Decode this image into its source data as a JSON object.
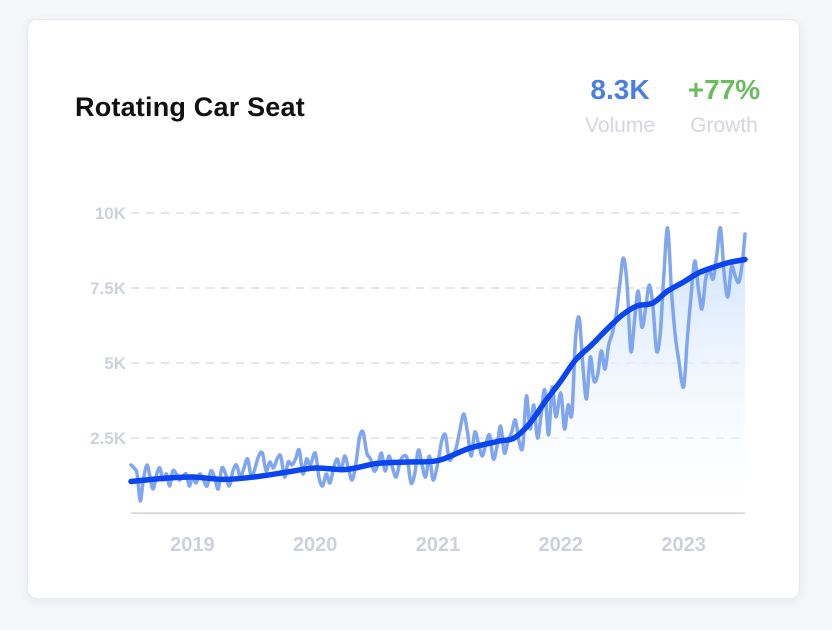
{
  "card": {
    "title": "Rotating Car Seat"
  },
  "metrics": {
    "volume": {
      "value": "8.3K",
      "label": "Volume",
      "color": "#4a7fe0"
    },
    "growth": {
      "value": "+77%",
      "label": "Growth",
      "color": "#68bd5c"
    }
  },
  "colors": {
    "raw_line": "#7fa6ef",
    "trend_line": "#0a45f0",
    "area_top": "#d6e6fd",
    "grid": "#dcdfe5",
    "tick_text": "#cdd1da"
  },
  "chart_data": {
    "type": "line",
    "title": "Rotating Car Seat",
    "xlabel": "",
    "ylabel": "",
    "xlim": [
      2018.5,
      2023.5
    ],
    "ylim": [
      0,
      10000
    ],
    "y_ticks": [
      2500,
      5000,
      7500,
      10000
    ],
    "y_tick_labels": [
      "2.5K",
      "5K",
      "7.5K",
      "10K"
    ],
    "x_ticks": [
      2019,
      2020,
      2021,
      2022,
      2023
    ],
    "x_tick_labels": [
      "2019",
      "2020",
      "2021",
      "2022",
      "2023"
    ],
    "grid": true,
    "series": [
      {
        "name": "",
        "style": "raw",
        "x": [
          2018.5,
          2018.525,
          2018.55,
          2018.575,
          2018.6,
          2018.63,
          2018.655,
          2018.68,
          2018.71,
          2018.735,
          2018.76,
          2018.79,
          2018.815,
          2018.84,
          2018.87,
          2018.895,
          2018.92,
          2018.95,
          2018.975,
          2019.0,
          2019.03,
          2019.06,
          2019.09,
          2019.12,
          2019.15,
          2019.18,
          2019.21,
          2019.24,
          2019.27,
          2019.3,
          2019.33,
          2019.36,
          2019.39,
          2019.42,
          2019.45,
          2019.48,
          2019.51,
          2019.54,
          2019.57,
          2019.6,
          2019.63,
          2019.66,
          2019.69,
          2019.72,
          2019.75,
          2019.78,
          2019.81,
          2019.84,
          2019.87,
          2019.9,
          2019.93,
          2019.96,
          2020.0,
          2020.03,
          2020.06,
          2020.09,
          2020.12,
          2020.15,
          2020.18,
          2020.21,
          2020.24,
          2020.27,
          2020.3,
          2020.33,
          2020.36,
          2020.39,
          2020.42,
          2020.45,
          2020.48,
          2020.51,
          2020.54,
          2020.57,
          2020.6,
          2020.63,
          2020.66,
          2020.69,
          2020.72,
          2020.75,
          2020.78,
          2020.81,
          2020.84,
          2020.87,
          2020.9,
          2020.93,
          2020.96,
          2021.0,
          2021.03,
          2021.06,
          2021.09,
          2021.12,
          2021.15,
          2021.18,
          2021.21,
          2021.24,
          2021.27,
          2021.3,
          2021.33,
          2021.36,
          2021.39,
          2021.42,
          2021.45,
          2021.48,
          2021.51,
          2021.54,
          2021.57,
          2021.6,
          2021.63,
          2021.66,
          2021.69,
          2021.72,
          2021.75,
          2021.78,
          2021.81,
          2021.84,
          2021.87,
          2021.9,
          2021.93,
          2021.96,
          2022.0,
          2022.03,
          2022.06,
          2022.09,
          2022.12,
          2022.15,
          2022.18,
          2022.21,
          2022.24,
          2022.27,
          2022.3,
          2022.33,
          2022.36,
          2022.39,
          2022.42,
          2022.45,
          2022.48,
          2022.51,
          2022.54,
          2022.57,
          2022.6,
          2022.63,
          2022.66,
          2022.69,
          2022.72,
          2022.75,
          2022.78,
          2022.81,
          2022.84,
          2022.87,
          2022.9,
          2022.93,
          2022.96,
          2023.0,
          2023.03,
          2023.06,
          2023.09,
          2023.12,
          2023.15,
          2023.18,
          2023.21,
          2023.24,
          2023.27,
          2023.3,
          2023.33,
          2023.36,
          2023.39,
          2023.42,
          2023.45,
          2023.48,
          2023.5
        ],
        "values": [
          1600,
          1500,
          1300,
          400,
          1100,
          1600,
          1200,
          800,
          1300,
          1500,
          1100,
          1300,
          900,
          1400,
          1300,
          1100,
          1200,
          1300,
          900,
          1200,
          1000,
          1300,
          1100,
          900,
          1400,
          1200,
          800,
          1500,
          1300,
          900,
          1400,
          1600,
          1200,
          1500,
          1800,
          1200,
          1500,
          1900,
          2000,
          1400,
          1700,
          1500,
          1800,
          1900,
          1200,
          1700,
          1600,
          1800,
          2100,
          1300,
          1800,
          1600,
          2000,
          1200,
          900,
          1300,
          1000,
          1500,
          1800,
          1400,
          1900,
          1500,
          1100,
          1600,
          2500,
          2700,
          2000,
          1800,
          1400,
          1600,
          2000,
          1400,
          1900,
          1500,
          1200,
          1700,
          1900,
          1800,
          1000,
          1300,
          2100,
          1600,
          1200,
          1900,
          1100,
          1700,
          2400,
          2600,
          1800,
          1900,
          2200,
          2800,
          3300,
          2700,
          1900,
          2700,
          2300,
          1900,
          2300,
          2600,
          1800,
          2200,
          2900,
          2000,
          2400,
          2700,
          3100,
          2400,
          2200,
          3900,
          2800,
          3600,
          2500,
          3300,
          4100,
          2600,
          4200,
          3200,
          4000,
          2800,
          3600,
          3300,
          5800,
          6500,
          4900,
          3800,
          5200,
          4400,
          4600,
          5400,
          4800,
          5600,
          6000,
          6600,
          7600,
          8500,
          7600,
          5400,
          6400,
          7400,
          6200,
          6800,
          7600,
          6900,
          5400,
          6000,
          8000,
          9500,
          7500,
          6000,
          5100,
          4200,
          5800,
          7200,
          8400,
          7500,
          6800,
          7800,
          8100,
          7800,
          8600,
          9500,
          8000,
          7200,
          8200,
          7900,
          7700,
          8400,
          9300
        ]
      },
      {
        "name": "",
        "style": "trend",
        "x": [
          2018.5,
          2018.75,
          2019.0,
          2019.25,
          2019.5,
          2019.75,
          2020.0,
          2020.25,
          2020.5,
          2020.75,
          2021.0,
          2021.25,
          2021.5,
          2021.62,
          2021.75,
          2021.87,
          2022.0,
          2022.12,
          2022.25,
          2022.37,
          2022.5,
          2022.62,
          2022.75,
          2022.87,
          2023.0,
          2023.12,
          2023.25,
          2023.37,
          2023.5
        ],
        "values": [
          1050,
          1150,
          1200,
          1120,
          1200,
          1350,
          1500,
          1450,
          1650,
          1700,
          1750,
          2150,
          2400,
          2500,
          3000,
          3700,
          4400,
          5100,
          5600,
          6100,
          6600,
          6900,
          7000,
          7400,
          7700,
          8000,
          8200,
          8350,
          8450
        ]
      }
    ]
  }
}
